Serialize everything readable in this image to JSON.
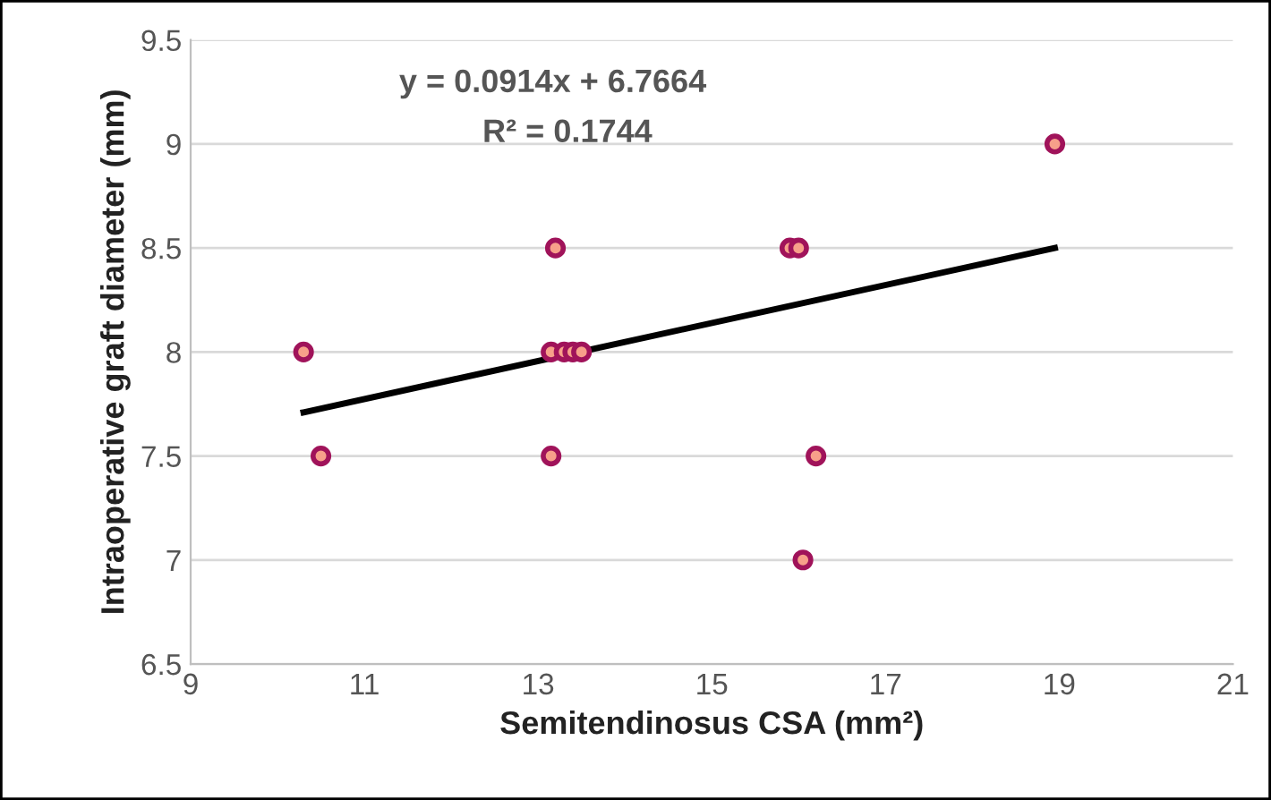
{
  "chart_data": {
    "type": "scatter",
    "xlabel": "Semitendinosus CSA (mm²)",
    "ylabel": "Intraoperative graft diameter (mm)",
    "xlim": [
      9,
      21
    ],
    "xticks": [
      9,
      11,
      13,
      15,
      17,
      19,
      21
    ],
    "ylim": [
      6.5,
      9.5
    ],
    "yticks": [
      6.5,
      7,
      7.5,
      8,
      8.5,
      9,
      9.5
    ],
    "grid": "y",
    "legend": false,
    "annotations": [
      "y = 0.0914x + 6.7664",
      "R² = 0.1744"
    ],
    "series": [
      {
        "color": "#a0135a",
        "marker": "circle",
        "x": [
          10.3,
          10.5,
          13.2,
          13.15,
          13.15,
          13.3,
          13.4,
          13.5,
          15.9,
          16.0,
          16.05,
          16.2,
          18.95
        ],
        "values": [
          8,
          7.5,
          8.5,
          8,
          7.5,
          8,
          8,
          8,
          8.5,
          8.5,
          7,
          7.5,
          9
        ]
      },
      {
        "type": "line",
        "marker": "none",
        "color": "#000000",
        "x": [
          10.3,
          18.95
        ],
        "values": [
          7.71,
          8.5
        ]
      }
    ]
  }
}
